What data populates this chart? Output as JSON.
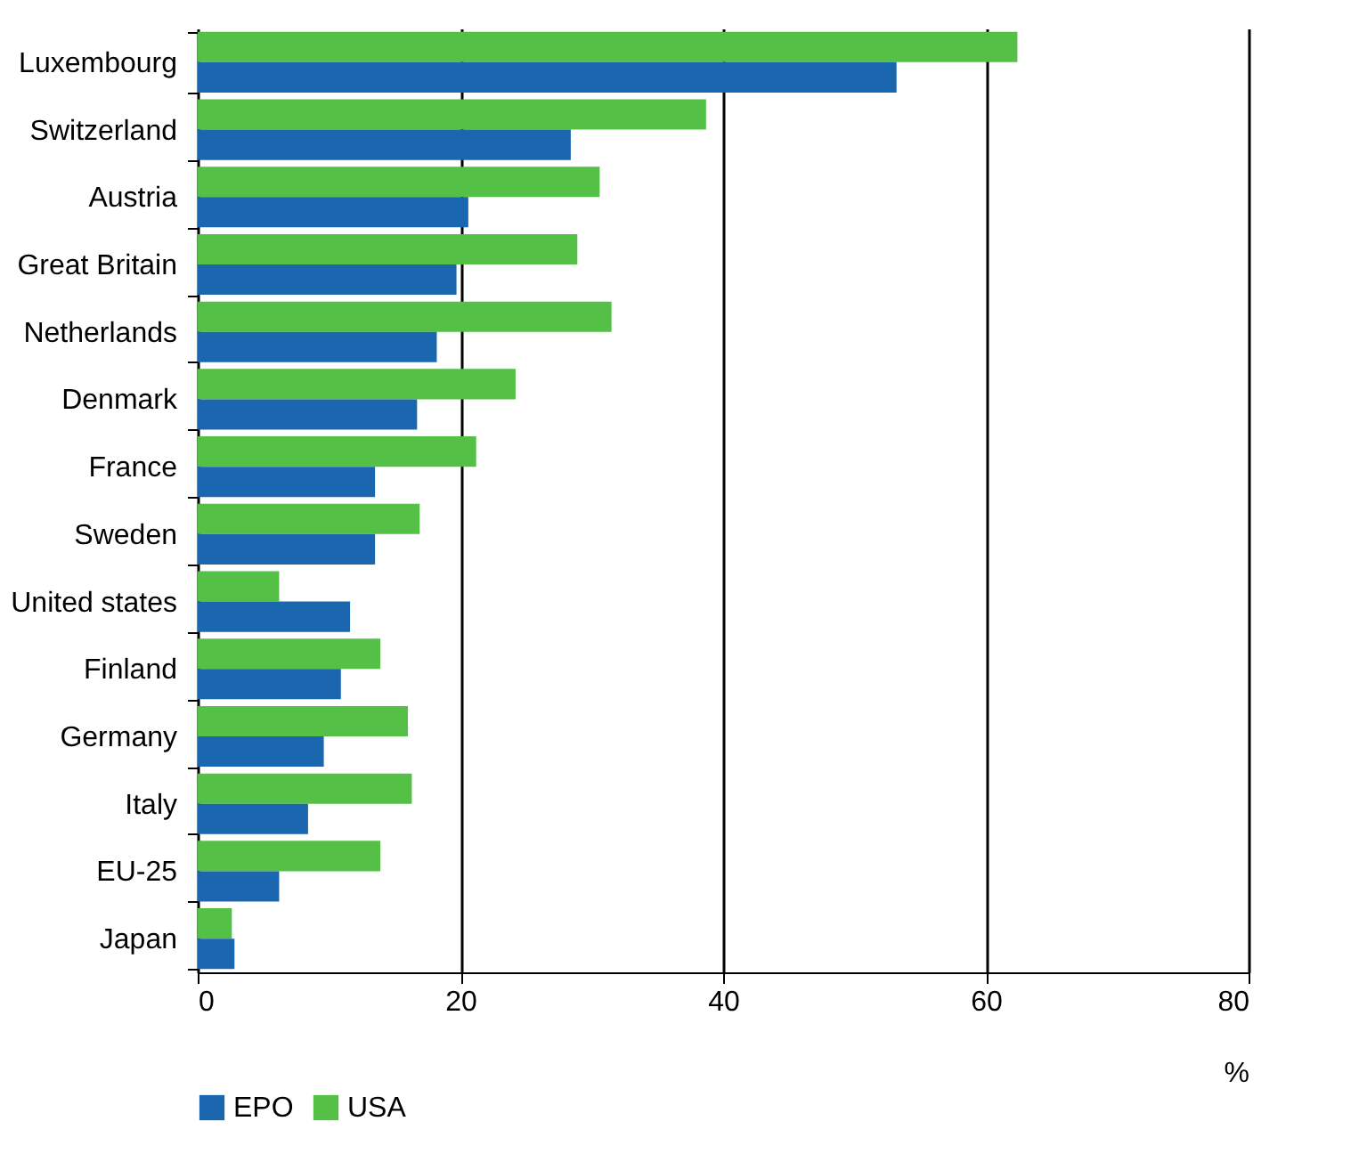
{
  "chart_data": {
    "type": "bar",
    "orientation": "horizontal",
    "xlabel": "%",
    "categories": [
      "Luxembourg",
      "Switzerland",
      "Austria",
      "Great Britain",
      "Netherlands",
      "Denmark",
      "France",
      "Sweden",
      "United states",
      "Finland",
      "Germany",
      "Italy",
      "EU-25",
      "Japan"
    ],
    "series": [
      {
        "name": "USA",
        "color": "#54c046",
        "values": [
          62.4,
          38.7,
          30.6,
          28.9,
          31.5,
          24.2,
          21.2,
          16.9,
          6.2,
          13.9,
          16.0,
          16.3,
          13.9,
          2.6
        ]
      },
      {
        "name": "EPO",
        "color": "#1a67b0",
        "values": [
          53.2,
          28.4,
          20.6,
          19.7,
          18.2,
          16.7,
          13.5,
          13.5,
          11.6,
          10.9,
          9.6,
          8.4,
          6.2,
          2.8
        ]
      }
    ],
    "xlim": [
      0,
      80
    ],
    "xticks": [
      0,
      20,
      40,
      60,
      80
    ],
    "grid": "x",
    "legend": "bottom"
  }
}
